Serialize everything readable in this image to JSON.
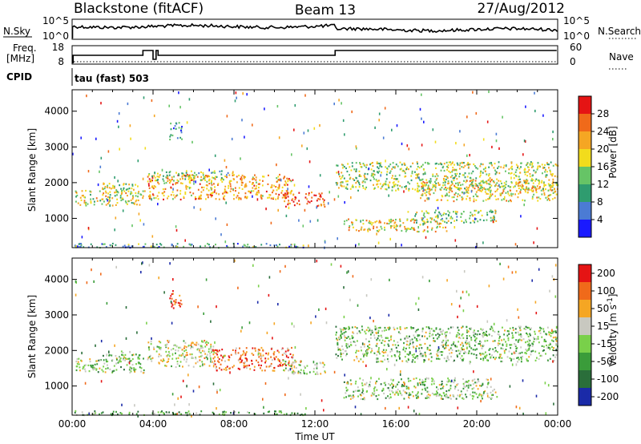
{
  "header": {
    "radar": "Blackstone (fitACF)",
    "beam": "Beam 13",
    "date": "27/Aug/2012"
  },
  "top_panels": {
    "nsky_label": "N.Sky",
    "nsky_ticks": [
      "10^5",
      "10^0"
    ],
    "nsearch_label": "N.Search",
    "nsearch_ticks": [
      "10^5",
      "10^0"
    ],
    "freq_label_line1": "Freq.",
    "freq_label_line2": "[MHz]",
    "freq_ticks": [
      "18",
      "8"
    ],
    "nave_label": "Nave",
    "nave_ticks": [
      "60",
      "0"
    ],
    "cpid_label": "CPID",
    "cpid_text": "tau (fast) 503"
  },
  "x_axis": {
    "label": "Time UT",
    "ticks": [
      "00:00",
      "04:00",
      "08:00",
      "12:00",
      "16:00",
      "20:00",
      "00:00"
    ]
  },
  "chart_data": [
    {
      "type": "heatmap",
      "panel": "power",
      "ylabel": "Slant Range [km]",
      "ylim": [
        180,
        4600
      ],
      "yticks": [
        1000,
        2000,
        3000,
        4000
      ],
      "xlim_hours": [
        0,
        24
      ],
      "colorbar_label": "Power [dB]",
      "colorbar_ticks": [
        "4",
        "8",
        "12",
        "16",
        "20",
        "24",
        "28"
      ],
      "colorbar_colors": [
        "#1a1aff",
        "#4b7bd4",
        "#2f9c6f",
        "#66c466",
        "#f2dc1c",
        "#f5a623",
        "#f06a1a",
        "#e51414"
      ],
      "echo_regions": [
        {
          "t0": 0.1,
          "t1": 3.6,
          "r0": 1380,
          "r1": 1800,
          "level": 0.55
        },
        {
          "t0": 1.5,
          "t1": 3.4,
          "r0": 1700,
          "r1": 2000,
          "level": 0.5
        },
        {
          "t0": 3.7,
          "t1": 10.9,
          "r0": 1550,
          "r1": 2250,
          "level": 0.7
        },
        {
          "t0": 3.7,
          "t1": 8.0,
          "r0": 2050,
          "r1": 2350,
          "level": 0.45
        },
        {
          "t0": 4.8,
          "t1": 5.4,
          "r0": 3200,
          "r1": 3700,
          "level": 0.3
        },
        {
          "t0": 10.4,
          "t1": 12.5,
          "r0": 1350,
          "r1": 1750,
          "level": 0.85
        },
        {
          "t0": 13.0,
          "t1": 24.0,
          "r0": 1800,
          "r1": 2600,
          "level": 0.5
        },
        {
          "t0": 17.0,
          "t1": 24.0,
          "r0": 1500,
          "r1": 2100,
          "level": 0.6
        },
        {
          "t0": 13.4,
          "t1": 18.5,
          "r0": 650,
          "r1": 1000,
          "level": 0.6
        },
        {
          "t0": 16.5,
          "t1": 21.0,
          "r0": 900,
          "r1": 1250,
          "level": 0.45
        },
        {
          "t0": 0.0,
          "t1": 11.5,
          "r0": 200,
          "r1": 320,
          "level": 0.3
        }
      ]
    },
    {
      "type": "heatmap",
      "panel": "velocity",
      "ylabel": "Slant Range [km]",
      "ylim": [
        180,
        4600
      ],
      "yticks": [
        1000,
        2000,
        3000,
        4000
      ],
      "xlim_hours": [
        0,
        24
      ],
      "colorbar_label": "Velocity [m s",
      "colorbar_label_exp": "-1",
      "colorbar_label_end": "]",
      "colorbar_ticks": [
        "200",
        "100",
        "50",
        "15",
        "-15",
        "-50",
        "-100",
        "-200"
      ],
      "colorbar_colors": [
        "#1a2aa8",
        "#2a6e3a",
        "#3a9c3a",
        "#79d04a",
        "#c8c8c0",
        "#f5a623",
        "#f06a1a",
        "#e51414"
      ],
      "echo_regions": [
        {
          "t0": 0.1,
          "t1": 3.6,
          "r0": 1380,
          "r1": 1800,
          "level": 0.45
        },
        {
          "t0": 1.5,
          "t1": 3.4,
          "r0": 1750,
          "r1": 2000,
          "level": 0.45
        },
        {
          "t0": 3.7,
          "t1": 7.0,
          "r0": 1550,
          "r1": 2300,
          "level": 0.55
        },
        {
          "t0": 7.0,
          "t1": 10.9,
          "r0": 1450,
          "r1": 2100,
          "level": 0.8
        },
        {
          "t0": 4.8,
          "t1": 5.4,
          "r0": 3200,
          "r1": 3700,
          "level": 0.95
        },
        {
          "t0": 10.4,
          "t1": 12.5,
          "r0": 1350,
          "r1": 1750,
          "level": 0.5
        },
        {
          "t0": 13.0,
          "t1": 24.0,
          "r0": 1700,
          "r1": 2700,
          "level": 0.45
        },
        {
          "t0": 13.4,
          "t1": 21.0,
          "r0": 650,
          "r1": 1250,
          "level": 0.45
        },
        {
          "t0": 0.0,
          "t1": 11.5,
          "r0": 200,
          "r1": 320,
          "level": 0.35
        }
      ]
    }
  ]
}
